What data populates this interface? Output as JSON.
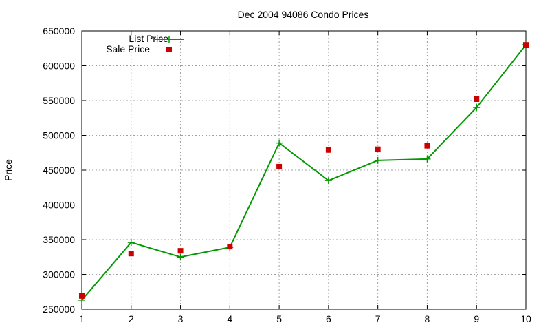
{
  "colors": {
    "list_price": "#009900",
    "sale_price": "#cc0000",
    "grid": "#a0a0a0",
    "axis": "#000000"
  },
  "chart_data": {
    "type": "line",
    "title": "Dec 2004 94086 Condo Prices",
    "xlabel": "",
    "ylabel": "Price",
    "xlim": [
      1,
      10
    ],
    "ylim": [
      250000,
      650000
    ],
    "grid": true,
    "legend_position": "top-left",
    "x_ticks": [
      1,
      2,
      3,
      4,
      5,
      6,
      7,
      8,
      9,
      10
    ],
    "x_tick_labels": [
      "1",
      "2",
      "3",
      "4",
      "5",
      "6",
      "7",
      "8",
      "9",
      "10"
    ],
    "y_ticks": [
      250000,
      300000,
      350000,
      400000,
      450000,
      500000,
      550000,
      600000,
      650000
    ],
    "y_tick_labels": [
      "250000",
      "300000",
      "350000",
      "400000",
      "450000",
      "500000",
      "550000",
      "600000",
      "650000"
    ],
    "x": [
      1,
      2,
      3,
      4,
      5,
      6,
      7,
      8,
      9,
      10
    ],
    "series": [
      {
        "name": "List Price",
        "style": "line+cross",
        "color": "#009900",
        "values": [
          263000,
          346000,
          325000,
          339000,
          489000,
          435000,
          464000,
          466000,
          540000,
          630000
        ]
      },
      {
        "name": "Sale Price",
        "style": "square",
        "color": "#cc0000",
        "values": [
          269000,
          330000,
          334000,
          340000,
          455000,
          479000,
          480000,
          485000,
          552000,
          630000
        ]
      }
    ]
  }
}
